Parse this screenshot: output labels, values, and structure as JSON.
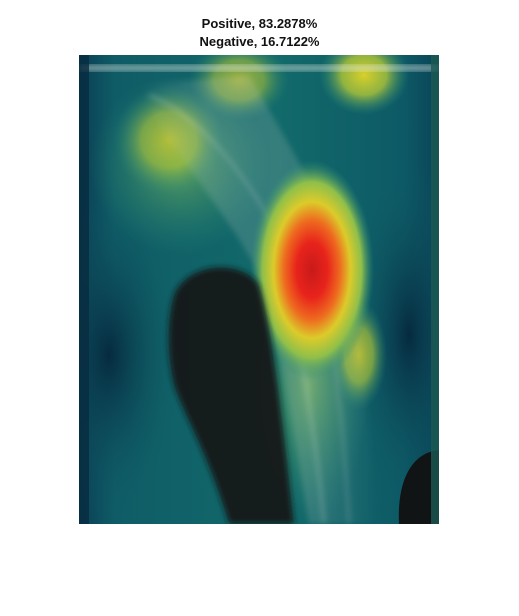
{
  "figure": {
    "title_line1": "Positive, 83.2878%",
    "title_line2": "Negative, 16.7122%"
  },
  "image": {
    "description_icon": "xray-forearm-heatmap",
    "colormap": "parula-jet-overlay",
    "colors": {
      "background_teal": "#0d5a63",
      "dark_edge": "#082c40",
      "hot_red": "#e8231c",
      "warm_yellow": "#d6d12c",
      "bone_gray": "#9fb0a6",
      "shadow_black": "#111111"
    }
  }
}
